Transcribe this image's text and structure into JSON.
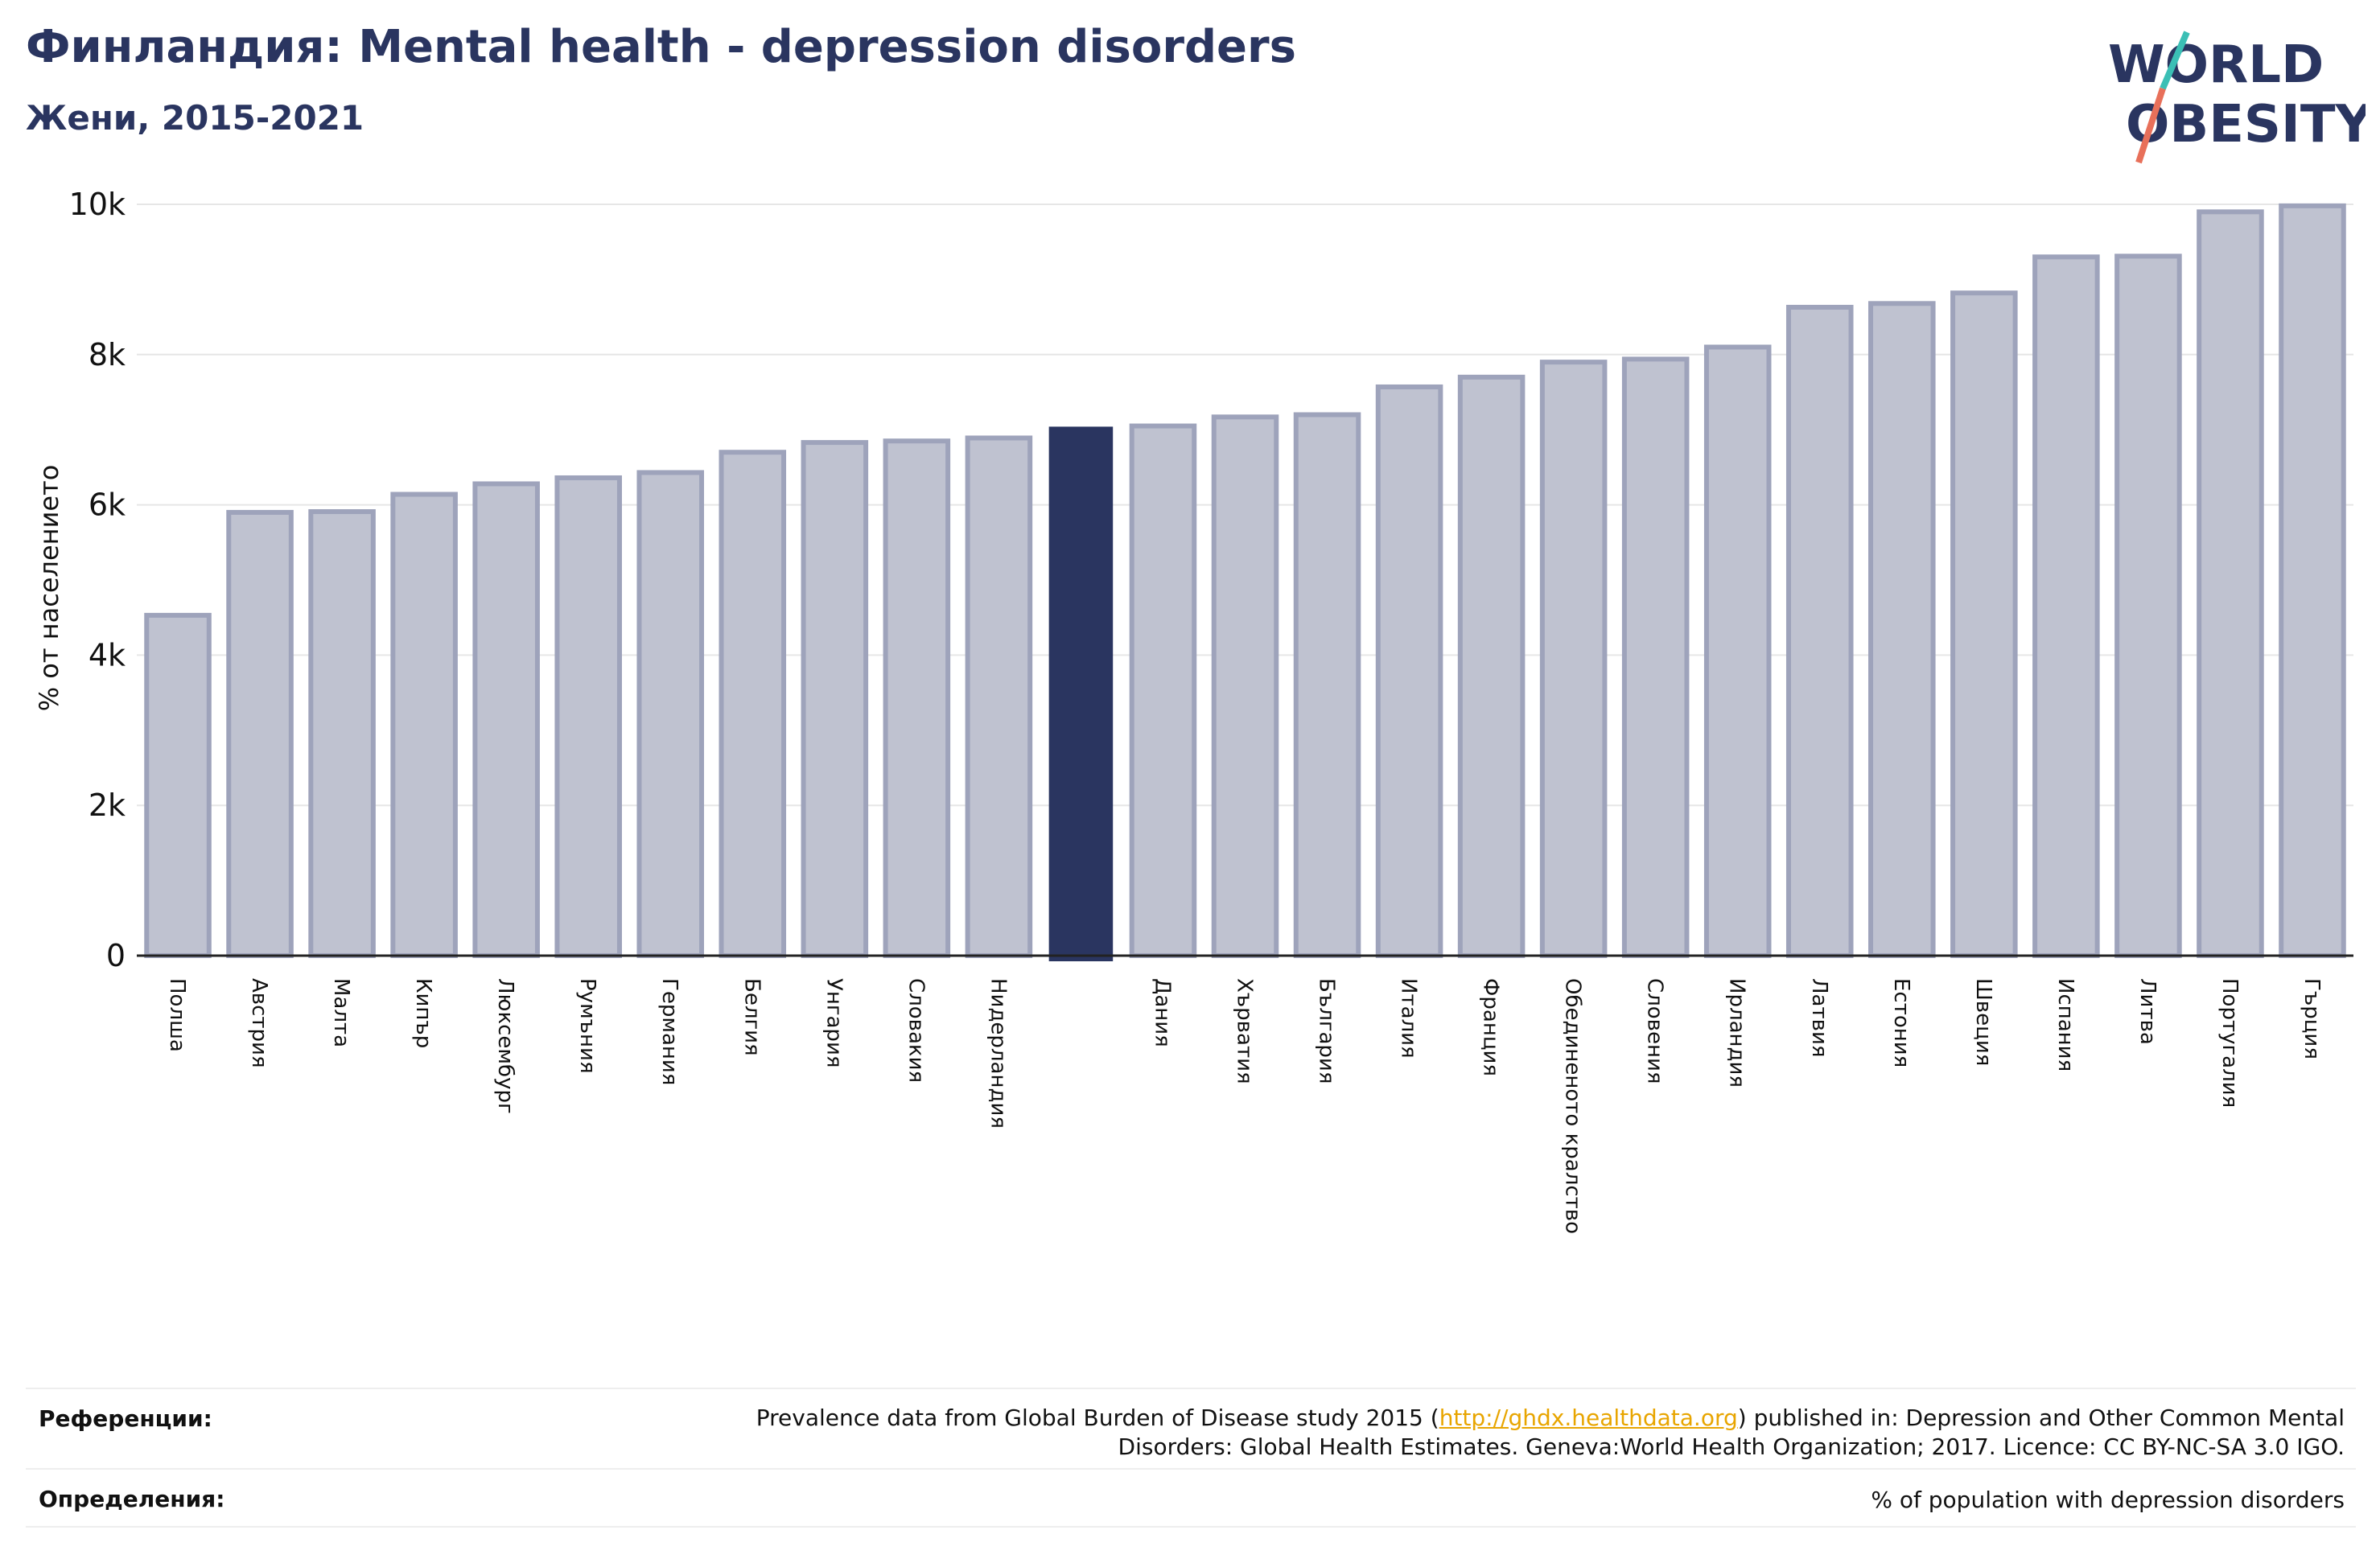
{
  "header": {
    "title": "Финландия: Mental health - depression disorders",
    "subtitle": "Жени, 2015-2021"
  },
  "logo": {
    "line1": "WORLD",
    "line2": "OBESITY"
  },
  "colors": {
    "highlight": "#2a3560",
    "bar": "#bfc2d0",
    "bar_border": "#9ea3bb",
    "title": "#2a3560"
  },
  "chart_data": {
    "type": "bar",
    "ylabel": "% от населението",
    "ylim": [
      0,
      10000
    ],
    "yticks": [
      0,
      2000,
      4000,
      6000,
      8000,
      10000
    ],
    "ytick_labels": [
      "0",
      "2k",
      "4k",
      "6k",
      "8k",
      "10k"
    ],
    "grid": true,
    "highlight_index": 11,
    "categories": [
      "Полша",
      "Австрия",
      "Малта",
      "Кипър",
      "Люксембург",
      "Румъния",
      "Германия",
      "Белгия",
      "Унгария",
      "Словакия",
      "Нидерландия",
      "",
      "Дания",
      "Хърватия",
      "България",
      "Италия",
      "Франция",
      "Обединеното кралство",
      "Словения",
      "Ирландия",
      "Латвия",
      "Естония",
      "Швеция",
      "Испания",
      "Литва",
      "Португалия",
      "Гърция"
    ],
    "values": [
      4530,
      5900,
      5910,
      6140,
      6280,
      6360,
      6430,
      6700,
      6830,
      6850,
      6890,
      7030,
      7050,
      7170,
      7200,
      7570,
      7700,
      7900,
      7940,
      8100,
      8630,
      8680,
      8820,
      9300,
      9310,
      9900,
      9980
    ]
  },
  "footer": {
    "references_label": "Референции:",
    "references_text_before": "Prevalence data from Global Burden of Disease study 2015 (",
    "references_link": "http://ghdx.healthdata.org",
    "references_text_after": ") published in: Depression and Other Common Mental",
    "references_text_line2": "Disorders: Global Health Estimates. Geneva:World Health Organization; 2017. Licence: CC BY-NC-SA 3.0 IGO.",
    "definitions_label": "Определения:",
    "definitions_text": "% of population with depression disorders"
  }
}
